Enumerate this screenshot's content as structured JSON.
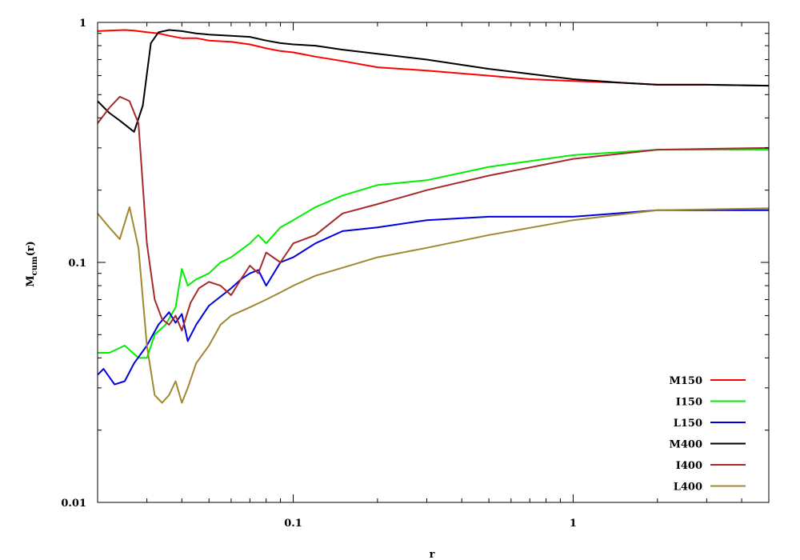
{
  "chart_data": {
    "type": "line",
    "title": "",
    "xlabel": "r",
    "ylabel": "M",
    "ylabel_sub": "cum",
    "ylabel_suffix": "(r)",
    "x_scale": "log",
    "y_scale": "log",
    "xlim": [
      0.02,
      5.0
    ],
    "ylim": [
      0.01,
      1
    ],
    "x_ticks": [
      {
        "value": 0.1,
        "label": "0.1"
      },
      {
        "value": 1,
        "label": "1"
      }
    ],
    "y_ticks": [
      {
        "value": 0.01,
        "label": "0.01"
      },
      {
        "value": 0.1,
        "label": "0.1"
      },
      {
        "value": 1,
        "label": "1"
      }
    ],
    "grid": false,
    "legend_position": "bottom-right",
    "series": [
      {
        "name": "M150",
        "color": "#ff0000",
        "x": [
          0.02,
          0.022,
          0.025,
          0.027,
          0.03,
          0.033,
          0.036,
          0.04,
          0.045,
          0.05,
          0.06,
          0.07,
          0.08,
          0.09,
          0.1,
          0.12,
          0.15,
          0.2,
          0.3,
          0.5,
          0.7,
          1.0,
          1.5,
          2.0,
          3.0,
          5.0
        ],
        "y": [
          0.92,
          0.925,
          0.93,
          0.925,
          0.91,
          0.9,
          0.88,
          0.86,
          0.86,
          0.84,
          0.83,
          0.81,
          0.78,
          0.76,
          0.75,
          0.72,
          0.69,
          0.65,
          0.63,
          0.6,
          0.58,
          0.57,
          0.56,
          0.55,
          0.55,
          0.545
        ]
      },
      {
        "name": "I150",
        "color": "#00ee00",
        "x": [
          0.02,
          0.022,
          0.025,
          0.028,
          0.03,
          0.032,
          0.035,
          0.038,
          0.04,
          0.042,
          0.045,
          0.05,
          0.055,
          0.06,
          0.07,
          0.075,
          0.08,
          0.09,
          0.1,
          0.12,
          0.15,
          0.2,
          0.3,
          0.5,
          1.0,
          2.0,
          5.0
        ],
        "y": [
          0.042,
          0.042,
          0.045,
          0.04,
          0.04,
          0.05,
          0.055,
          0.065,
          0.094,
          0.08,
          0.085,
          0.09,
          0.1,
          0.105,
          0.12,
          0.13,
          0.12,
          0.14,
          0.15,
          0.17,
          0.19,
          0.21,
          0.22,
          0.25,
          0.28,
          0.295,
          0.295
        ]
      },
      {
        "name": "L150",
        "color": "#0000dd",
        "x": [
          0.02,
          0.021,
          0.023,
          0.025,
          0.027,
          0.03,
          0.033,
          0.036,
          0.038,
          0.04,
          0.042,
          0.045,
          0.05,
          0.06,
          0.065,
          0.07,
          0.075,
          0.08,
          0.09,
          0.1,
          0.12,
          0.15,
          0.2,
          0.3,
          0.5,
          1.0,
          2.0,
          5.0
        ],
        "y": [
          0.034,
          0.036,
          0.031,
          0.032,
          0.038,
          0.045,
          0.055,
          0.062,
          0.056,
          0.061,
          0.047,
          0.055,
          0.066,
          0.078,
          0.085,
          0.09,
          0.093,
          0.08,
          0.1,
          0.105,
          0.12,
          0.135,
          0.14,
          0.15,
          0.155,
          0.155,
          0.165,
          0.165
        ]
      },
      {
        "name": "M400",
        "color": "#000000",
        "x": [
          0.02,
          0.022,
          0.024,
          0.027,
          0.029,
          0.031,
          0.033,
          0.036,
          0.04,
          0.045,
          0.05,
          0.06,
          0.07,
          0.08,
          0.09,
          0.1,
          0.12,
          0.15,
          0.2,
          0.3,
          0.5,
          0.7,
          1.0,
          1.5,
          2.0,
          3.0,
          5.0
        ],
        "y": [
          0.47,
          0.42,
          0.39,
          0.35,
          0.45,
          0.82,
          0.91,
          0.93,
          0.92,
          0.9,
          0.89,
          0.88,
          0.87,
          0.84,
          0.82,
          0.81,
          0.8,
          0.77,
          0.74,
          0.7,
          0.64,
          0.61,
          0.58,
          0.56,
          0.55,
          0.55,
          0.545
        ]
      },
      {
        "name": "I400",
        "color": "#a52a2a",
        "x": [
          0.02,
          0.022,
          0.024,
          0.026,
          0.028,
          0.03,
          0.032,
          0.034,
          0.036,
          0.038,
          0.04,
          0.043,
          0.046,
          0.05,
          0.055,
          0.06,
          0.065,
          0.07,
          0.075,
          0.08,
          0.09,
          0.1,
          0.12,
          0.15,
          0.2,
          0.3,
          0.5,
          1.0,
          2.0,
          5.0
        ],
        "y": [
          0.38,
          0.44,
          0.49,
          0.47,
          0.38,
          0.12,
          0.07,
          0.058,
          0.055,
          0.06,
          0.052,
          0.068,
          0.078,
          0.083,
          0.08,
          0.073,
          0.085,
          0.097,
          0.09,
          0.11,
          0.1,
          0.12,
          0.13,
          0.16,
          0.175,
          0.2,
          0.23,
          0.27,
          0.295,
          0.3
        ]
      },
      {
        "name": "L400",
        "color": "#a08830",
        "x": [
          0.02,
          0.022,
          0.024,
          0.026,
          0.028,
          0.03,
          0.032,
          0.034,
          0.036,
          0.038,
          0.04,
          0.042,
          0.045,
          0.05,
          0.055,
          0.06,
          0.07,
          0.08,
          0.09,
          0.1,
          0.12,
          0.15,
          0.2,
          0.3,
          0.5,
          1.0,
          2.0,
          5.0
        ],
        "y": [
          0.16,
          0.14,
          0.125,
          0.17,
          0.115,
          0.045,
          0.028,
          0.026,
          0.028,
          0.032,
          0.026,
          0.03,
          0.038,
          0.045,
          0.055,
          0.06,
          0.065,
          0.07,
          0.075,
          0.08,
          0.088,
          0.095,
          0.105,
          0.115,
          0.13,
          0.15,
          0.165,
          0.168
        ]
      }
    ]
  }
}
